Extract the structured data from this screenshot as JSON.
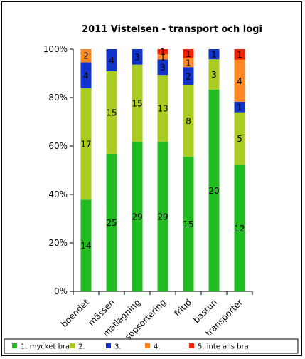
{
  "chart_data": {
    "type": "bar",
    "stacked": true,
    "percent_stacked": true,
    "title": "2011 Vistelsen - transport och logi",
    "xlabel": "",
    "ylabel": "",
    "ylim": [
      0,
      100
    ],
    "yticks": [
      "0%",
      "20%",
      "40%",
      "60%",
      "80%",
      "100%"
    ],
    "categories": [
      "boendet",
      "mässen",
      "matlagning",
      "sopsortering",
      "fritid",
      "bastun",
      "transporter"
    ],
    "series": [
      {
        "name": "1. mycket bra",
        "color": "#22bb22",
        "values": [
          14,
          25,
          29,
          29,
          15,
          20,
          12
        ]
      },
      {
        "name": "2.",
        "color": "#aacc22",
        "values": [
          17,
          15,
          15,
          13,
          8,
          3,
          5
        ]
      },
      {
        "name": "3.",
        "color": "#1133cc",
        "values": [
          4,
          4,
          3,
          3,
          2,
          1,
          1
        ]
      },
      {
        "name": "4.",
        "color": "#ff8822",
        "values": [
          2,
          0,
          0,
          1,
          1,
          0,
          4
        ]
      },
      {
        "name": "5. inte alls bra",
        "color": "#ee2200",
        "values": [
          0,
          0,
          0,
          1,
          1,
          0,
          1
        ]
      }
    ],
    "grid": false,
    "legend_position": "bottom"
  }
}
